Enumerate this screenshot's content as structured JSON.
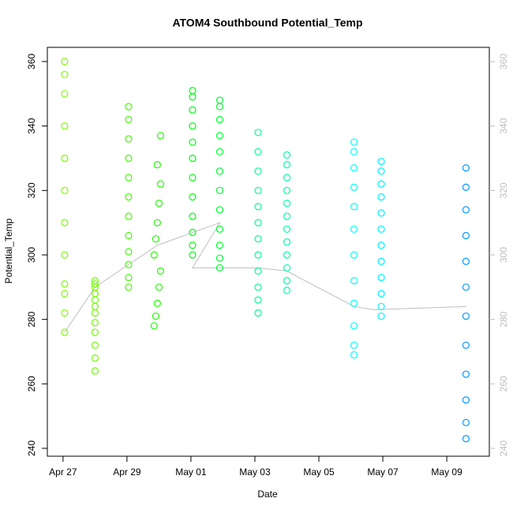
{
  "chart_data": {
    "type": "scatter",
    "title": "ATOM4 Southbound Potential_Temp",
    "xlabel": "Date",
    "ylabel": "Potential_Temp",
    "xlim": [
      -0.49,
      13.33
    ],
    "xticks": [
      {
        "value": 0,
        "label": "Apr 27"
      },
      {
        "value": 2,
        "label": "Apr 29"
      },
      {
        "value": 4,
        "label": "May 01"
      },
      {
        "value": 6,
        "label": "May 03"
      },
      {
        "value": 8,
        "label": "May 05"
      },
      {
        "value": 10,
        "label": "May 07"
      },
      {
        "value": 12,
        "label": "May 09"
      }
    ],
    "ylim": [
      237.55,
      364.4
    ],
    "yticks": [
      240,
      260,
      280,
      300,
      320,
      340,
      360
    ],
    "y2lim": [
      237.55,
      364.4
    ],
    "y2ticks": [
      240,
      260,
      280,
      300,
      320,
      340,
      360
    ],
    "trace": {
      "color": "#bebebe",
      "x": [
        0.05,
        1.0,
        2.05,
        2.95,
        4.9,
        4.05,
        6.1,
        7.0,
        9.1,
        9.7,
        12.6
      ],
      "values": [
        276,
        290,
        297,
        303,
        310,
        296,
        296,
        295,
        284,
        283,
        284
      ]
    },
    "series": [
      {
        "color": "#7fff00",
        "x": [
          0.05,
          0.05,
          0.05,
          0.05,
          0.05,
          0.05,
          0.05,
          0.05,
          0.05,
          0.05,
          0.05,
          0.05
        ],
        "values": [
          276,
          282,
          288,
          291,
          300,
          310,
          320,
          330,
          340,
          350,
          356,
          360
        ]
      },
      {
        "color": "#70ff00",
        "x": [
          1.0,
          1.0,
          1.0,
          1.0,
          1.0,
          1.0,
          1.0,
          1.0,
          1.0,
          1.0,
          1.0,
          1.0
        ],
        "values": [
          264,
          268,
          272,
          276,
          279,
          282,
          284,
          286,
          288,
          290,
          291,
          292
        ]
      },
      {
        "color": "#40ff00",
        "x": [
          2.05,
          2.05,
          2.05,
          2.05,
          2.05,
          2.05,
          2.05,
          2.05,
          2.05,
          2.05,
          2.05,
          2.05
        ],
        "values": [
          290,
          293,
          297,
          301,
          306,
          312,
          318,
          324,
          330,
          336,
          342,
          346
        ]
      },
      {
        "color": "#20ff00",
        "x": [
          2.85,
          2.9,
          2.95,
          3.0,
          3.05,
          2.85,
          2.9,
          2.95,
          3.0,
          3.05,
          2.95,
          3.05
        ],
        "values": [
          278,
          281,
          285,
          290,
          295,
          300,
          305,
          310,
          316,
          322,
          328,
          337
        ]
      },
      {
        "color": "#00ff10",
        "x": [
          4.05,
          4.05,
          4.05,
          4.05,
          4.05,
          4.05,
          4.05,
          4.05,
          4.05,
          4.05,
          4.05,
          4.05
        ],
        "values": [
          300,
          303,
          307,
          312,
          318,
          324,
          330,
          335,
          340,
          345,
          349,
          351
        ]
      },
      {
        "color": "#00ff30",
        "x": [
          4.9,
          4.9,
          4.9,
          4.9,
          4.9,
          4.9,
          4.9,
          4.9,
          4.9,
          4.9,
          4.9,
          4.9
        ],
        "values": [
          296,
          299,
          303,
          308,
          314,
          320,
          326,
          332,
          337,
          342,
          346,
          348
        ]
      },
      {
        "color": "#00ff90",
        "x": [
          6.1,
          6.1,
          6.1,
          6.1,
          6.1,
          6.1,
          6.1,
          6.1,
          6.1,
          6.1,
          6.1,
          6.1
        ],
        "values": [
          282,
          286,
          290,
          295,
          300,
          305,
          310,
          315,
          320,
          326,
          332,
          338
        ]
      },
      {
        "color": "#00ffa8",
        "x": [
          7.0,
          7.0,
          7.0,
          7.0,
          7.0,
          7.0,
          7.0,
          7.0,
          7.0,
          7.0,
          7.0,
          7.0
        ],
        "values": [
          289,
          292,
          296,
          300,
          304,
          308,
          312,
          316,
          320,
          324,
          328,
          331
        ]
      },
      {
        "color": "#00ffff",
        "x": [
          9.1,
          9.1,
          9.1,
          9.1,
          9.1,
          9.1,
          9.1,
          9.1,
          9.1,
          9.1,
          9.1,
          9.1
        ],
        "values": [
          269,
          272,
          278,
          285,
          292,
          300,
          308,
          315,
          321,
          327,
          332,
          335
        ]
      },
      {
        "color": "#00f0ff",
        "x": [
          9.95,
          9.95,
          9.95,
          9.95,
          9.95,
          9.95,
          9.95,
          9.95,
          9.95,
          9.95,
          9.95,
          9.95
        ],
        "values": [
          281,
          284,
          288,
          293,
          298,
          303,
          308,
          313,
          318,
          322,
          326,
          329
        ]
      },
      {
        "color": "#0099ff",
        "x": [
          12.6,
          12.6,
          12.6,
          12.6,
          12.6,
          12.6,
          12.6,
          12.6,
          12.6,
          12.6,
          12.6,
          12.6
        ],
        "values": [
          243,
          248,
          255,
          263,
          272,
          281,
          290,
          298,
          306,
          314,
          321,
          327
        ]
      }
    ]
  }
}
